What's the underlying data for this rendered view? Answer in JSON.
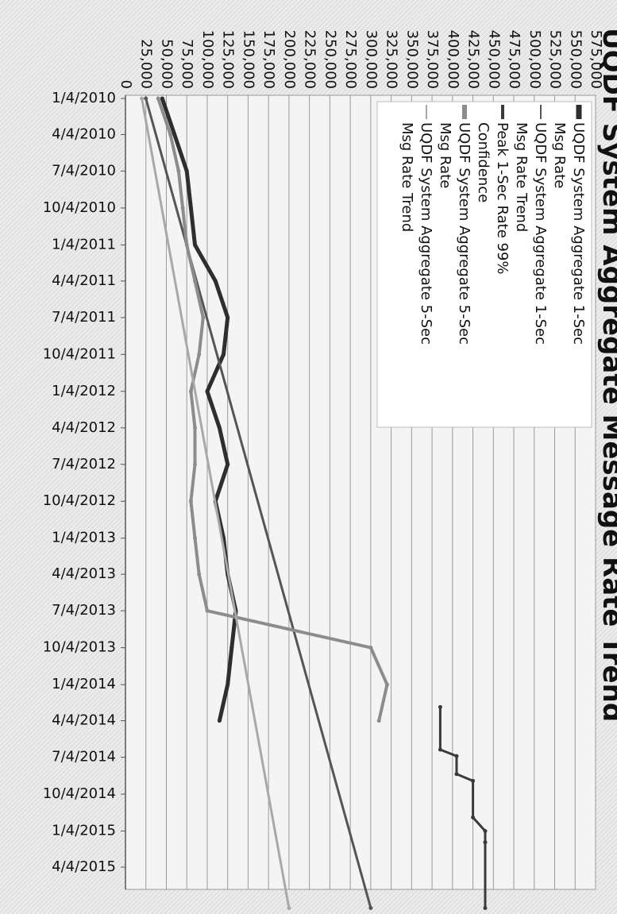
{
  "chart_data": {
    "type": "line",
    "title": "UQDF System Aggregate Message Rate Trend",
    "orientation": "rotated-90-clockwise",
    "grid": true,
    "legend_placement": "top-left",
    "ylim": [
      0,
      575000
    ],
    "y_ticks": [
      0,
      25000,
      50000,
      75000,
      100000,
      125000,
      150000,
      175000,
      200000,
      225000,
      250000,
      275000,
      300000,
      325000,
      350000,
      375000,
      400000,
      425000,
      450000,
      475000,
      500000,
      525000,
      550000,
      575000
    ],
    "y_tick_labels": [
      "0",
      "25,000",
      "50,000",
      "75,000",
      "100,000",
      "125,000",
      "150,000",
      "175,000",
      "200,000",
      "225,000",
      "250,000",
      "275,000",
      "300,000",
      "325,000",
      "350,000",
      "375,000",
      "400,000",
      "425,000",
      "450,000",
      "475,000",
      "500,000",
      "525,000",
      "550,000",
      "575,000"
    ],
    "xlim": [
      "2010-01-04",
      "2015-07-15"
    ],
    "x_ticks": [
      "1/4/2010",
      "4/4/2010",
      "7/4/2010",
      "10/4/2010",
      "1/4/2011",
      "4/4/2011",
      "7/4/2011",
      "10/4/2011",
      "1/4/2012",
      "4/4/2012",
      "7/4/2012",
      "10/4/2012",
      "1/4/2013",
      "4/4/2013",
      "7/4/2013",
      "10/4/2013",
      "1/4/2014",
      "4/4/2014",
      "7/4/2014",
      "10/4/2014",
      "1/4/2015",
      "4/4/2015"
    ],
    "series": [
      {
        "name": "UQDF System Aggregate 1-Sec Msg Rate",
        "color": "#2e2e2e",
        "x": [
          "2010-01-04",
          "2010-04-04",
          "2010-07-04",
          "2010-10-04",
          "2011-01-04",
          "2011-04-04",
          "2011-07-04",
          "2011-10-04",
          "2012-01-04",
          "2012-04-04",
          "2012-07-04",
          "2012-10-04",
          "2013-01-04",
          "2013-04-04",
          "2013-07-04",
          "2013-10-04",
          "2014-01-04",
          "2014-04-04"
        ],
        "y": [
          45000,
          60000,
          75000,
          80000,
          85000,
          110000,
          125000,
          120000,
          100000,
          115000,
          125000,
          110000,
          120000,
          125000,
          135000,
          130000,
          125000,
          115000
        ]
      },
      {
        "name": "UQDF System Aggregate 1-Sec Msg Rate Trend",
        "color": "#555555",
        "x": [
          "2010-01-04",
          "2015-07-15"
        ],
        "y": [
          25000,
          300000
        ]
      },
      {
        "name": "Peak 1-Sec Rate 99% Confidence",
        "color": "#3a3a3a",
        "x": [
          "2014-03-01",
          "2014-06-15",
          "2014-07-01",
          "2014-08-15",
          "2014-09-01",
          "2014-12-01",
          "2015-01-04",
          "2015-02-01",
          "2015-07-15"
        ],
        "y": [
          385000,
          385000,
          405000,
          405000,
          425000,
          425000,
          440000,
          440000,
          440000
        ]
      },
      {
        "name": "UQDF System Aggregate 5-Sec Msg Rate",
        "color": "#8c8c8c",
        "x": [
          "2010-01-04",
          "2010-04-04",
          "2010-07-04",
          "2010-10-04",
          "2011-01-04",
          "2011-04-04",
          "2011-07-04",
          "2011-10-04",
          "2012-01-04",
          "2012-04-04",
          "2012-07-04",
          "2012-10-04",
          "2013-01-04",
          "2013-04-04",
          "2013-07-04",
          "2013-10-04",
          "2014-01-04",
          "2014-04-04"
        ],
        "y": [
          40000,
          55000,
          65000,
          70000,
          75000,
          85000,
          95000,
          90000,
          80000,
          85000,
          85000,
          80000,
          85000,
          90000,
          100000,
          300000,
          320000,
          310000
        ]
      },
      {
        "name": "UQDF System Aggregate 5-Sec Msg Rate Trend",
        "color": "#a8a8a8",
        "x": [
          "2010-01-04",
          "2015-07-15"
        ],
        "y": [
          20000,
          200000
        ]
      }
    ]
  }
}
